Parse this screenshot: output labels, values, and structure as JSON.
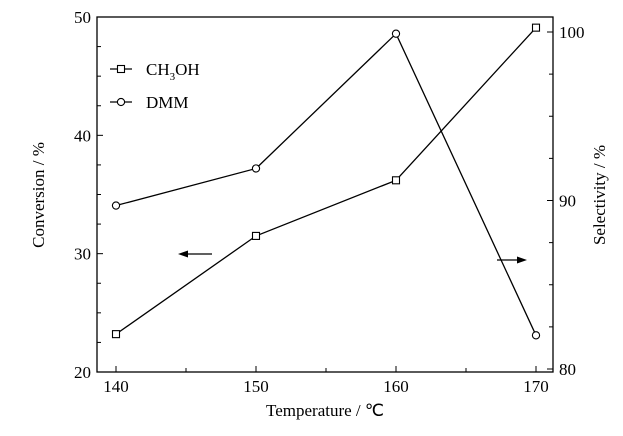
{
  "chart_data": {
    "type": "line",
    "title": "",
    "xlabel": "Temperature / ℃",
    "ylabel_left": "Conversion / %",
    "ylabel_right": "Selectivity / %",
    "x": [
      140,
      150,
      160,
      170
    ],
    "xlim": [
      139,
      171
    ],
    "ylim_left": [
      20,
      50
    ],
    "ylim_right": [
      80,
      101.4
    ],
    "x_ticks": [
      "140",
      "150",
      "160",
      "170"
    ],
    "y_left_ticks": [
      "20",
      "30",
      "40",
      "50"
    ],
    "y_right_ticks": [
      "80",
      "90",
      "100"
    ],
    "series": [
      {
        "name": "CH3OH",
        "label_main": "CH",
        "label_sub": "3",
        "label_tail": "OH",
        "axis": "left",
        "marker": "square",
        "values": [
          23.2,
          31.5,
          36.2,
          49.1
        ]
      },
      {
        "name": "DMM",
        "axis": "right",
        "marker": "circle",
        "values": [
          89.7,
          91.9,
          99.9,
          82.0
        ]
      }
    ],
    "legend_position": "top-left",
    "grid": false
  }
}
